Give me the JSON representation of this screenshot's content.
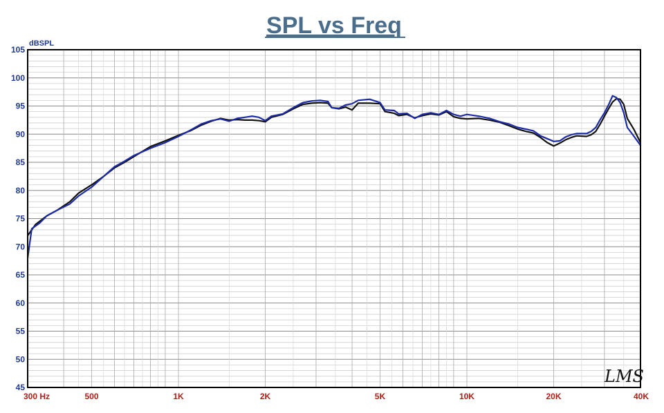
{
  "title": "SPL vs Freq",
  "watermark": "LMS",
  "chart_data": {
    "type": "line",
    "title": "SPL vs Freq",
    "ylabel": "dBSPL",
    "x_scale": "log",
    "xlim": [
      300,
      40000
    ],
    "ylim": [
      45,
      105
    ],
    "grid": true,
    "yticks": [
      105,
      100,
      95,
      90,
      85,
      80,
      75,
      70,
      65,
      60,
      55,
      50,
      45
    ],
    "xticks": [
      {
        "value": 300,
        "label": "300  Hz"
      },
      {
        "value": 500,
        "label": "500"
      },
      {
        "value": 1000,
        "label": "1K"
      },
      {
        "value": 2000,
        "label": "2K"
      },
      {
        "value": 5000,
        "label": "5K"
      },
      {
        "value": 10000,
        "label": "10K"
      },
      {
        "value": 20000,
        "label": "20K"
      },
      {
        "value": 40000,
        "label": "40K"
      }
    ],
    "series": [
      {
        "color": "#111111",
        "points": [
          [
            300,
            72.0
          ],
          [
            320,
            74.0
          ],
          [
            350,
            75.5
          ],
          [
            380,
            76.5
          ],
          [
            420,
            78.0
          ],
          [
            450,
            79.5
          ],
          [
            500,
            81.0
          ],
          [
            550,
            82.5
          ],
          [
            600,
            84.0
          ],
          [
            650,
            85.0
          ],
          [
            700,
            86.0
          ],
          [
            800,
            87.8
          ],
          [
            900,
            88.8
          ],
          [
            1000,
            89.8
          ],
          [
            1100,
            90.6
          ],
          [
            1200,
            91.6
          ],
          [
            1300,
            92.3
          ],
          [
            1400,
            92.8
          ],
          [
            1500,
            92.5
          ],
          [
            1600,
            92.6
          ],
          [
            1700,
            92.5
          ],
          [
            1800,
            92.5
          ],
          [
            1900,
            92.4
          ],
          [
            2000,
            92.2
          ],
          [
            2100,
            93.0
          ],
          [
            2300,
            93.5
          ],
          [
            2500,
            94.5
          ],
          [
            2700,
            95.3
          ],
          [
            2900,
            95.5
          ],
          [
            3100,
            95.6
          ],
          [
            3300,
            95.5
          ],
          [
            3400,
            94.7
          ],
          [
            3600,
            94.5
          ],
          [
            3800,
            94.8
          ],
          [
            4000,
            94.3
          ],
          [
            4200,
            95.5
          ],
          [
            4600,
            95.5
          ],
          [
            5000,
            95.4
          ],
          [
            5200,
            94.0
          ],
          [
            5600,
            93.7
          ],
          [
            5800,
            93.3
          ],
          [
            6200,
            93.5
          ],
          [
            6600,
            92.9
          ],
          [
            7000,
            93.3
          ],
          [
            7500,
            93.6
          ],
          [
            8000,
            93.4
          ],
          [
            8500,
            94.0
          ],
          [
            9000,
            93.1
          ],
          [
            9500,
            92.8
          ],
          [
            10000,
            92.7
          ],
          [
            11000,
            92.8
          ],
          [
            12000,
            92.5
          ],
          [
            13000,
            92.1
          ],
          [
            14000,
            91.5
          ],
          [
            15000,
            90.9
          ],
          [
            16000,
            90.5
          ],
          [
            17000,
            90.2
          ],
          [
            18000,
            89.4
          ],
          [
            19000,
            88.5
          ],
          [
            20000,
            87.9
          ],
          [
            21000,
            88.4
          ],
          [
            22000,
            89.0
          ],
          [
            23000,
            89.4
          ],
          [
            24000,
            89.7
          ],
          [
            26000,
            89.6
          ],
          [
            27000,
            89.9
          ],
          [
            28000,
            90.5
          ],
          [
            29000,
            91.8
          ],
          [
            30000,
            93.2
          ],
          [
            31000,
            94.5
          ],
          [
            32000,
            95.7
          ],
          [
            33000,
            96.3
          ],
          [
            34000,
            96.2
          ],
          [
            35000,
            95.3
          ],
          [
            36000,
            92.8
          ],
          [
            38000,
            90.8
          ],
          [
            40000,
            88.5
          ]
        ]
      },
      {
        "color": "#1c2aa6",
        "points": [
          [
            300,
            68.0
          ],
          [
            310,
            73.2
          ],
          [
            330,
            74.2
          ],
          [
            350,
            75.5
          ],
          [
            380,
            76.5
          ],
          [
            420,
            77.6
          ],
          [
            450,
            79.0
          ],
          [
            500,
            80.6
          ],
          [
            550,
            82.5
          ],
          [
            600,
            84.2
          ],
          [
            650,
            85.2
          ],
          [
            700,
            86.2
          ],
          [
            800,
            87.5
          ],
          [
            900,
            88.5
          ],
          [
            1000,
            89.6
          ],
          [
            1100,
            90.7
          ],
          [
            1200,
            91.8
          ],
          [
            1300,
            92.4
          ],
          [
            1400,
            92.7
          ],
          [
            1500,
            92.3
          ],
          [
            1600,
            92.8
          ],
          [
            1700,
            93.0
          ],
          [
            1800,
            93.2
          ],
          [
            1900,
            93.0
          ],
          [
            2000,
            92.4
          ],
          [
            2100,
            93.2
          ],
          [
            2300,
            93.6
          ],
          [
            2500,
            94.7
          ],
          [
            2700,
            95.6
          ],
          [
            2900,
            95.9
          ],
          [
            3100,
            96.0
          ],
          [
            3300,
            95.8
          ],
          [
            3400,
            94.7
          ],
          [
            3600,
            94.6
          ],
          [
            3800,
            95.2
          ],
          [
            4000,
            95.4
          ],
          [
            4200,
            96.0
          ],
          [
            4600,
            96.2
          ],
          [
            5000,
            95.6
          ],
          [
            5200,
            94.3
          ],
          [
            5600,
            94.2
          ],
          [
            5800,
            93.6
          ],
          [
            6200,
            93.7
          ],
          [
            6600,
            92.8
          ],
          [
            7000,
            93.5
          ],
          [
            7500,
            93.8
          ],
          [
            8000,
            93.5
          ],
          [
            8500,
            94.2
          ],
          [
            9000,
            93.5
          ],
          [
            9500,
            93.2
          ],
          [
            10000,
            93.5
          ],
          [
            11000,
            93.2
          ],
          [
            12000,
            92.8
          ],
          [
            13000,
            92.2
          ],
          [
            14000,
            91.8
          ],
          [
            15000,
            91.2
          ],
          [
            16000,
            90.9
          ],
          [
            17000,
            90.6
          ],
          [
            18000,
            89.7
          ],
          [
            19000,
            89.2
          ],
          [
            20000,
            88.7
          ],
          [
            21000,
            88.8
          ],
          [
            22000,
            89.5
          ],
          [
            23000,
            89.9
          ],
          [
            24000,
            90.1
          ],
          [
            26000,
            90.1
          ],
          [
            27000,
            90.5
          ],
          [
            28000,
            91.2
          ],
          [
            29000,
            92.6
          ],
          [
            30000,
            93.8
          ],
          [
            31000,
            95.2
          ],
          [
            32000,
            96.8
          ],
          [
            33000,
            96.5
          ],
          [
            34000,
            95.6
          ],
          [
            35000,
            93.8
          ],
          [
            36000,
            91.2
          ],
          [
            38000,
            89.6
          ],
          [
            40000,
            88.0
          ]
        ]
      }
    ]
  }
}
